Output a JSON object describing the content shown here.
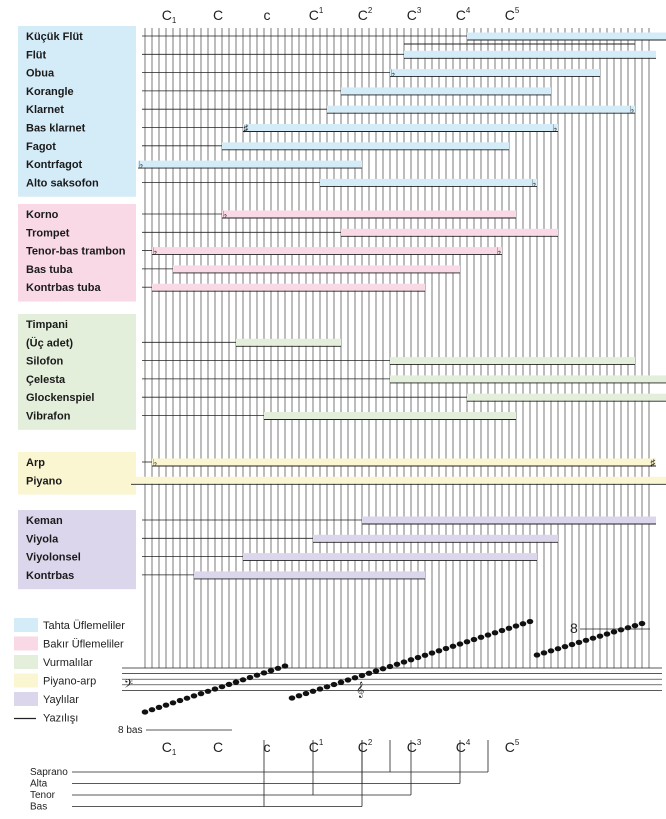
{
  "colors": {
    "woodwind": "#d4ebf8",
    "brass": "#f9d9e6",
    "percussion": "#e3eedb",
    "harp_piano": "#fbf6d2",
    "strings": "#dcd6ec"
  },
  "top_notes": [
    {
      "base": "C",
      "mark": "1",
      "pos": "sub"
    },
    {
      "base": "C",
      "mark": "",
      "pos": ""
    },
    {
      "base": "c",
      "mark": "",
      "pos": ""
    },
    {
      "base": "C",
      "mark": "1",
      "pos": "sup"
    },
    {
      "base": "C",
      "mark": "2",
      "pos": "sup"
    },
    {
      "base": "C",
      "mark": "3",
      "pos": "sup"
    },
    {
      "base": "C",
      "mark": "4",
      "pos": "sup"
    },
    {
      "base": "C",
      "mark": "5",
      "pos": "sup"
    }
  ],
  "groups": [
    {
      "key": "woodwind",
      "instruments": [
        {
          "name": "Küçük Flüt",
          "start": 46,
          "end": 79,
          "written": [
            37,
            70
          ]
        },
        {
          "name": "Flüt",
          "start": 37,
          "end": 73
        },
        {
          "name": "Obua",
          "start": 35,
          "end": 65,
          "flat_left": true
        },
        {
          "name": "Korangle",
          "start": 28,
          "end": 58
        },
        {
          "name": "Klarnet",
          "start": 26,
          "end": 70,
          "flat_right": true
        },
        {
          "name": "Bas klarnet",
          "start": 14,
          "end": 59,
          "sharp_left": true,
          "flat_right": true
        },
        {
          "name": "Fagot",
          "start": 11,
          "end": 52
        },
        {
          "name": "Kontrfagot",
          "start": -1,
          "end": 31,
          "flat_left": true
        },
        {
          "name": "Alto saksofon",
          "start": 25,
          "end": 56,
          "flat_right": true
        }
      ]
    },
    {
      "key": "brass",
      "instruments": [
        {
          "name": "Korno",
          "start": 11,
          "end": 53,
          "flat_left": true
        },
        {
          "name": "Trompet",
          "start": 28,
          "end": 59
        },
        {
          "name": "Tenor-bas trambon",
          "start": 1,
          "end": 51,
          "flat_left": true,
          "flat_right": true
        },
        {
          "name": "Bas tuba",
          "start": 4,
          "end": 45
        },
        {
          "name": "Kontrbas tuba",
          "start": 1,
          "end": 40
        }
      ]
    },
    {
      "key": "percussion",
      "instruments": [
        {
          "name": "Timpani\n(Üç adet)",
          "start": 13,
          "end": 28
        },
        {
          "name": "Silofon",
          "start": 35,
          "end": 70
        },
        {
          "name": "Çelesta",
          "start": 35,
          "end": 77
        },
        {
          "name": "Glockenspiel",
          "start": 46,
          "end": 77
        },
        {
          "name": "Vibrafon",
          "start": 17,
          "end": 53
        }
      ]
    },
    {
      "key": "harp_piano",
      "instruments": [
        {
          "name": "Arp",
          "start": 1,
          "end": 73,
          "flat_left": true,
          "sharp_right": true
        },
        {
          "name": "Piyano",
          "start": -2,
          "end": 77
        }
      ]
    },
    {
      "key": "strings",
      "instruments": [
        {
          "name": "Keman",
          "start": 31,
          "end": 73
        },
        {
          "name": "Viyola",
          "start": 24,
          "end": 59
        },
        {
          "name": "Viyolonsel",
          "start": 14,
          "end": 56
        },
        {
          "name": "Kontrbas",
          "start": 7,
          "end": 40
        }
      ]
    }
  ],
  "legend": [
    {
      "label": "Tahta Üflemeliler",
      "key": "woodwind"
    },
    {
      "label": "Bakır Üflemeliler",
      "key": "brass"
    },
    {
      "label": "Vurmalılar",
      "key": "percussion"
    },
    {
      "label": "Piyano-arp",
      "key": "harp_piano"
    },
    {
      "label": "Yaylılar",
      "key": "strings"
    },
    {
      "label": "Yazılışı",
      "key": "line"
    }
  ],
  "staff": {
    "ottava_bassa": "8 bas",
    "ottava_alta": "8",
    "bass_clef": "𝄢",
    "treble_clef": "𝄞"
  },
  "voices": [
    {
      "name": "Saprano",
      "start": 35,
      "end": 49
    },
    {
      "name": "Alta",
      "start": 31,
      "end": 45
    },
    {
      "name": "Tenor",
      "start": 24,
      "end": 38
    },
    {
      "name": "Bas",
      "start": 17,
      "end": 31
    }
  ]
}
